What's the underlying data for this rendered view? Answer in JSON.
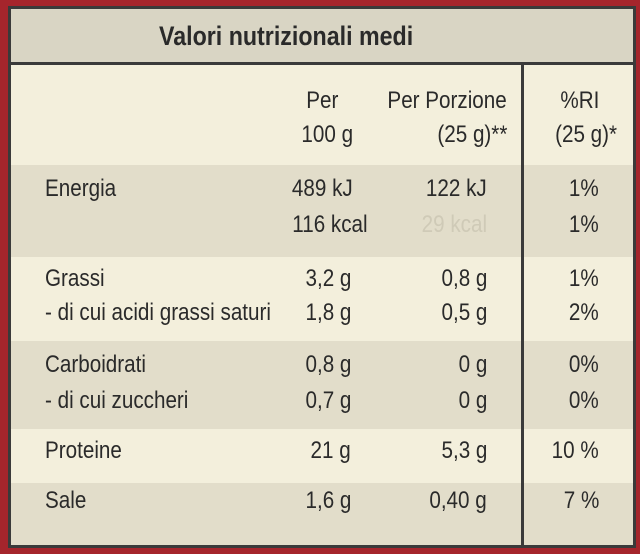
{
  "title": "Valori nutrizionali medi",
  "headers": {
    "per100_line1": "Per",
    "per100_line2": "100 g",
    "portion_line1": "Per Porzione",
    "portion_line2": "(25 g)**",
    "ri_line1": "%RI",
    "ri_line2": "(25 g)*"
  },
  "rows": [
    {
      "label": "Energia",
      "per100": "489 kJ",
      "portion": "122 kJ",
      "ri": "1%"
    },
    {
      "label": "",
      "per100": "116 kcal",
      "portion": "29 kcal",
      "ri": "1%"
    },
    {
      "label": "Grassi",
      "per100": "3,2 g",
      "portion": "0,8 g",
      "ri": "1%"
    },
    {
      "label": "- di cui acidi grassi saturi",
      "per100": "1,8 g",
      "portion": "0,5 g",
      "ri": "2%"
    },
    {
      "label": "Carboidrati",
      "per100": "0,8 g",
      "portion": "0 g",
      "ri": "0%"
    },
    {
      "label": "- di cui zuccheri",
      "per100": "0,7 g",
      "portion": "0 g",
      "ri": "0%"
    },
    {
      "label": "Proteine",
      "per100": "21 g",
      "portion": "5,3 g",
      "ri": "10 %"
    },
    {
      "label": "Sale",
      "per100": "1,6 g",
      "portion": "0,40 g",
      "ri": "7 %"
    }
  ]
}
